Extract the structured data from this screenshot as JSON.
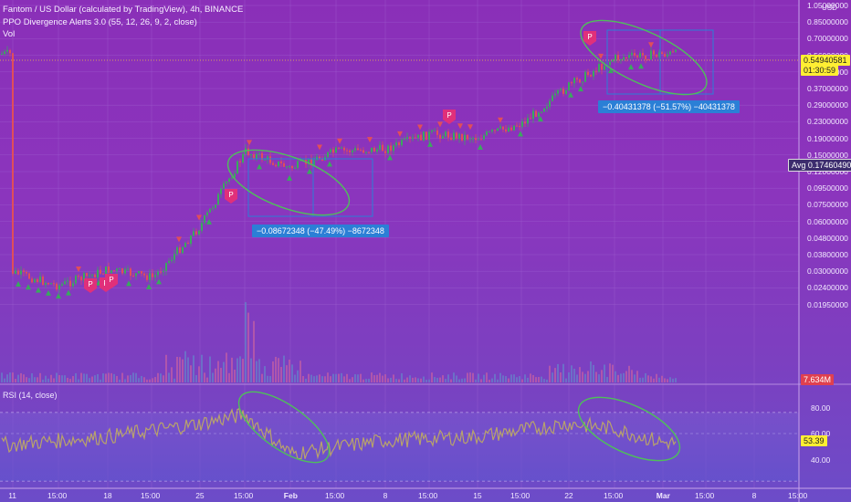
{
  "header": {
    "title": "Fantom / US Dollar (calculated by TradingView), 4h, BINANCE",
    "indicator": "PPO Divergence Alerts 3.0 (55, 12, 26, 9, 2, close)",
    "volume": "Vol"
  },
  "price_axis": {
    "unit": "USD",
    "labels": [
      "1.05000000",
      "0.85000000",
      "0.70000000",
      "0.56000000",
      "0.45000000",
      "0.37000000",
      "0.29000000",
      "0.23000000",
      "0.19000000",
      "0.15000000",
      "0.12000000",
      "0.09500000",
      "0.07500000",
      "0.06000000",
      "0.04800000",
      "0.03800000",
      "0.03000000",
      "0.02400000",
      "0.01950000"
    ],
    "last_price": "0.54940581",
    "countdown": "01:30:59",
    "avg_label": "Avg",
    "avg_value": "0.17460490",
    "volume_value": "7.634M"
  },
  "rsi": {
    "title": "RSI (14, close)",
    "labels": [
      "80.00",
      "60.00",
      "40.00"
    ],
    "value": "53.39"
  },
  "time_axis": [
    "11",
    "15:00",
    "18",
    "15:00",
    "25",
    "15:00",
    "Feb",
    "15:00",
    "8",
    "15:00",
    "15",
    "15:00",
    "22",
    "15:00",
    "Mar",
    "15:00",
    "8",
    "15:00"
  ],
  "measures": [
    {
      "text": "−0.08672348 (−47.49%) −8672348"
    },
    {
      "text": "−0.40431378 (−51.57%) −40431378"
    }
  ],
  "marker_letter": "P",
  "colors": {
    "up": "#3aa95e",
    "down": "#e04e5a",
    "measure": "#2b7fd6",
    "ellipse": "#4fbf5a",
    "price_tag": "#ffee33"
  },
  "chart_data": {
    "type": "candlestick",
    "title": "Fantom / US Dollar (calculated by TradingView), 4h, BINANCE",
    "scale": "log",
    "ylim": [
      0.017,
      1.1
    ],
    "x": [
      "11",
      "18",
      "25",
      "Feb",
      "8",
      "15",
      "22",
      "Mar",
      "8"
    ],
    "price_path": [
      [
        "11",
        0.03
      ],
      [
        "15:00",
        0.025
      ],
      [
        "18",
        0.031
      ],
      [
        "15:00",
        0.028
      ],
      [
        "25",
        0.055
      ],
      [
        "15:00",
        0.15
      ],
      [
        "Feb",
        0.12
      ],
      [
        "15:00",
        0.15
      ],
      [
        "8",
        0.155
      ],
      [
        "15:00",
        0.19
      ],
      [
        "15",
        0.18
      ],
      [
        "15:00",
        0.22
      ],
      [
        "22",
        0.36
      ],
      [
        "15:00",
        0.52
      ],
      [
        "Mar",
        0.55
      ]
    ],
    "rsi_path": [
      [
        "11",
        52
      ],
      [
        "18",
        58
      ],
      [
        "25",
        68
      ],
      [
        "15:00",
        75
      ],
      [
        "Feb",
        45
      ],
      [
        "8",
        55
      ],
      [
        "15",
        58
      ],
      [
        "22",
        68
      ],
      [
        "15:00",
        64
      ],
      [
        "Mar",
        53.39
      ]
    ]
  }
}
